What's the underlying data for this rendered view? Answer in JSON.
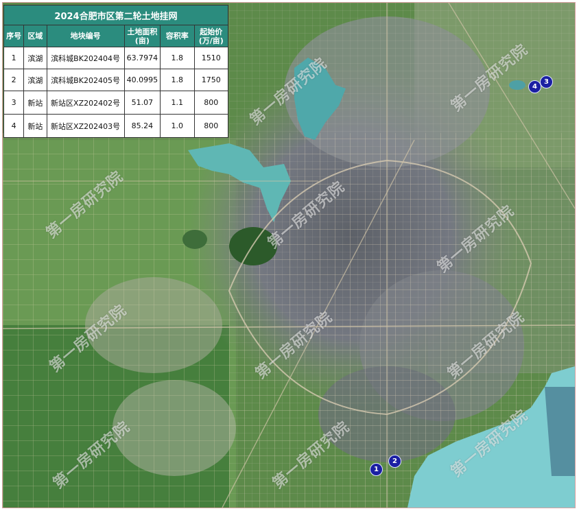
{
  "table": {
    "title": "2024合肥市区第二轮土地挂网",
    "headers": [
      "序号",
      "区域",
      "地块编号",
      "土地面积\n(亩)",
      "容积率",
      "起始价\n(万/亩)"
    ],
    "rows": [
      {
        "no": "1",
        "area": "滨湖",
        "code": "滨科城BK202404号",
        "size": "63.7974",
        "far": "1.8",
        "price": "1510"
      },
      {
        "no": "2",
        "area": "滨湖",
        "code": "滨科城BK202405号",
        "size": "40.0995",
        "far": "1.8",
        "price": "1750"
      },
      {
        "no": "3",
        "area": "新站",
        "code": "新站区XZ202402号",
        "size": "51.07",
        "far": "1.1",
        "price": "800"
      },
      {
        "no": "4",
        "area": "新站",
        "code": "新站区XZ202403号",
        "size": "85.24",
        "far": "1.0",
        "price": "800"
      }
    ]
  },
  "markers": [
    {
      "label": "1"
    },
    {
      "label": "2"
    },
    {
      "label": "3"
    },
    {
      "label": "4"
    }
  ],
  "watermark": "第一房研究院",
  "colors": {
    "table_header": "#2b8c7e",
    "marker": "#1b1fa3",
    "lake": "#5fb7b4",
    "forest": "#3f7a3a",
    "urban": "#7a7c80"
  }
}
